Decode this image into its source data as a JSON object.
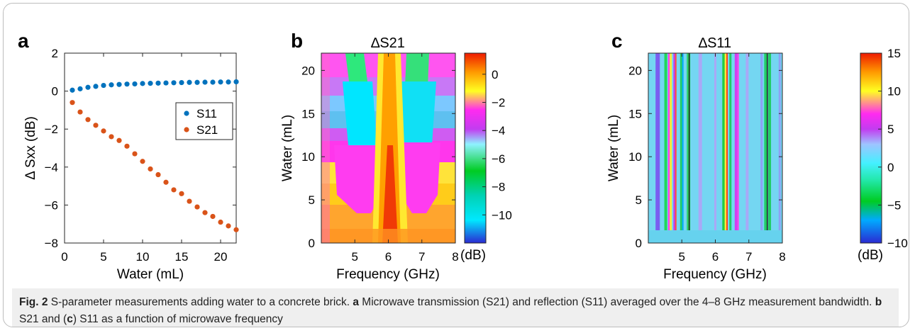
{
  "figure": {
    "caption": {
      "fig_label": "Fig. 2",
      "text1": " S-parameter measurements adding water to a concrete brick. ",
      "a": "a",
      "text2": " Microwave transmission (S21) and reflection (S11) averaged over the 4–8 GHz measurement bandwidth. ",
      "b": "b",
      "text3": " S21 and (",
      "c": "c",
      "text4": ") S11 as a function of microwave frequency"
    }
  },
  "chart_data": [
    {
      "panel": "a",
      "type": "scatter",
      "title": "",
      "xlabel": "Water (mL)",
      "ylabel": "Δ Sxx (dB)",
      "xlim": [
        0,
        22
      ],
      "ylim": [
        -8,
        2
      ],
      "xticks": [
        0,
        5,
        10,
        15,
        20
      ],
      "yticks": [
        2,
        0,
        -2,
        -4,
        -6,
        -8
      ],
      "legend_position": "center-right",
      "series": [
        {
          "name": "S11",
          "color": "#0072BD",
          "x": [
            1,
            2,
            3,
            4,
            5,
            6,
            7,
            8,
            9,
            10,
            11,
            12,
            13,
            14,
            15,
            16,
            17,
            18,
            19,
            20,
            21,
            22
          ],
          "y": [
            0.05,
            0.12,
            0.2,
            0.25,
            0.3,
            0.33,
            0.35,
            0.37,
            0.38,
            0.4,
            0.41,
            0.42,
            0.43,
            0.44,
            0.45,
            0.46,
            0.46,
            0.47,
            0.47,
            0.48,
            0.48,
            0.49
          ]
        },
        {
          "name": "S21",
          "color": "#D95319",
          "x": [
            1,
            2,
            3,
            4,
            5,
            6,
            7,
            8,
            9,
            10,
            11,
            12,
            13,
            14,
            15,
            16,
            17,
            18,
            19,
            20,
            21,
            22
          ],
          "y": [
            -0.6,
            -1.1,
            -1.5,
            -1.8,
            -2.1,
            -2.4,
            -2.6,
            -2.9,
            -3.3,
            -3.7,
            -4.1,
            -4.4,
            -4.8,
            -5.2,
            -5.4,
            -5.8,
            -6.1,
            -6.4,
            -6.6,
            -6.9,
            -7.1,
            -7.3
          ]
        }
      ]
    },
    {
      "panel": "b",
      "type": "heatmap",
      "title": "∆S21",
      "xlabel": "Frequency (GHz)",
      "ylabel": "Water (mL)",
      "xlim": [
        4,
        8
      ],
      "ylim": [
        0,
        22
      ],
      "xticks": [
        5,
        6,
        7,
        8
      ],
      "yticks": [
        0,
        5,
        10,
        15,
        20
      ],
      "colorbar": {
        "unit": "(dB)",
        "range": [
          -12,
          1.5
        ],
        "ticks": [
          0,
          -2,
          -4,
          -6,
          -8,
          -10
        ]
      }
    },
    {
      "panel": "c",
      "type": "heatmap",
      "title": "∆S11",
      "xlabel": "Frequency (GHz)",
      "ylabel": "Water (mL)",
      "xlim": [
        4,
        8
      ],
      "ylim": [
        0,
        22
      ],
      "xticks": [
        5,
        6,
        7,
        8
      ],
      "yticks": [
        0,
        5,
        10,
        15,
        20
      ],
      "colorbar": {
        "unit": "(dB)",
        "range": [
          -10,
          15
        ],
        "ticks": [
          15,
          10,
          5,
          0,
          -5,
          -10
        ]
      }
    }
  ]
}
